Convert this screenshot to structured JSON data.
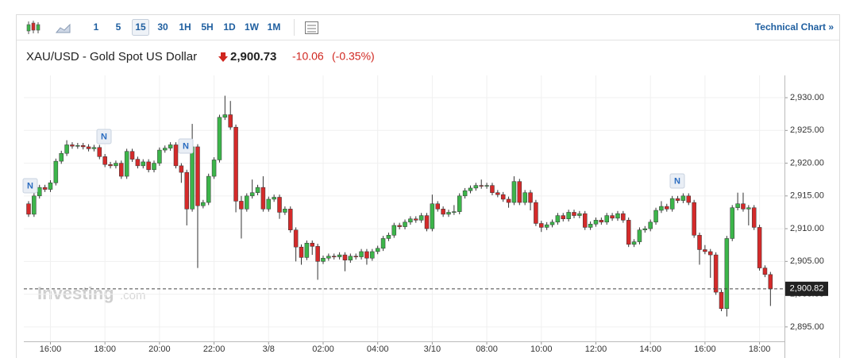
{
  "toolbar": {
    "intervals": [
      "1",
      "5",
      "15",
      "30",
      "1H",
      "5H",
      "1D",
      "1W",
      "1M"
    ],
    "active_interval": 2,
    "link": "Technical Chart »"
  },
  "chart_data": {
    "type": "candlestick",
    "title": "XAU/USD - Gold Spot US Dollar",
    "price": "2,900.73",
    "change": "-10.06",
    "change_pct": "(-0.35%)",
    "watermark": "Investing",
    "watermark_suffix": ".com",
    "news_markers": [
      "N",
      "N",
      "N",
      "N"
    ],
    "categories": [
      null,
      null,
      null,
      null,
      "16:00",
      null,
      null,
      null,
      null,
      null,
      null,
      null,
      null,
      null,
      "18:00",
      null,
      null,
      null,
      null,
      null,
      null,
      null,
      null,
      null,
      "20:00",
      null,
      null,
      null,
      null,
      null,
      null,
      null,
      null,
      null,
      "22:00",
      null,
      null,
      null,
      null,
      null,
      null,
      null,
      null,
      null,
      "3/8",
      null,
      null,
      null,
      null,
      null,
      null,
      null,
      null,
      null,
      "02:00",
      null,
      null,
      null,
      null,
      null,
      null,
      null,
      null,
      null,
      "04:00",
      null,
      null,
      null,
      null,
      null,
      null,
      null,
      null,
      null,
      "3/10",
      null,
      null,
      null,
      null,
      null,
      null,
      null,
      null,
      null,
      "08:00",
      null,
      null,
      null,
      null,
      null,
      null,
      null,
      null,
      null,
      "10:00",
      null,
      null,
      null,
      null,
      null,
      null,
      null,
      null,
      null,
      "12:00",
      null,
      null,
      null,
      null,
      null,
      null,
      null,
      null,
      null,
      "14:00",
      null,
      null,
      null,
      null,
      null,
      null,
      null,
      null,
      null,
      "16:00",
      null,
      null,
      null,
      null,
      null,
      null,
      null,
      null,
      null,
      "18:00",
      null,
      null
    ],
    "open": [
      2913.8,
      2912.2,
      2915.0,
      2916.3,
      2916.0,
      2917.0,
      2920.3,
      2921.5,
      2922.8,
      2922.6,
      2922.7,
      2922.5,
      2922.2,
      2922.4,
      2921.0,
      2919.8,
      2919.6,
      2920.0,
      2918.0,
      2921.8,
      2920.6,
      2919.6,
      2920.2,
      2919.0,
      2920.0,
      2922.0,
      2922.3,
      2922.8,
      2919.6,
      2918.6,
      2913.0,
      2922.5,
      2913.5,
      2914.0,
      2918.0,
      2920.5,
      2927.0,
      2927.4,
      2925.5,
      2914.2,
      2913.0,
      2915.0,
      2915.5,
      2916.3,
      2913.0,
      2914.5,
      2914.8,
      2912.5,
      2913.0,
      2909.8,
      2907.2,
      2905.6,
      2907.8,
      2907.3,
      2905.0,
      2905.5,
      2905.8,
      2905.7,
      2906.0,
      2905.2,
      2905.8,
      2905.7,
      2906.5,
      2905.5,
      2906.5,
      2907.0,
      2908.5,
      2909.0,
      2910.5,
      2910.3,
      2911.0,
      2911.5,
      2911.3,
      2912.0,
      2910.0,
      2913.8,
      2913.0,
      2912.2,
      2912.5,
      2912.6,
      2915.0,
      2915.8,
      2916.2,
      2916.6,
      2916.5,
      2916.6,
      2915.5,
      2915.2,
      2914.5,
      2914.0,
      2917.2,
      2914.0,
      2915.5,
      2914.0,
      2910.8,
      2910.2,
      2910.6,
      2911.0,
      2912.0,
      2911.5,
      2912.5,
      2912.0,
      2912.3,
      2910.2,
      2910.7,
      2911.3,
      2911.0,
      2912.0,
      2911.6,
      2912.3,
      2911.3,
      2907.6,
      2908.0,
      2909.8,
      2910.0,
      2911.0,
      2912.8,
      2913.4,
      2913.0,
      2914.6,
      2914.3,
      2915.0,
      2914.0,
      2909.0,
      2906.8,
      2906.5,
      2906.0,
      2900.3,
      2897.8,
      2908.5,
      2913.2,
      2913.8,
      2913.0,
      2913.2,
      2910.2,
      2904.0,
      2903.0
    ],
    "high": [
      2914.2,
      2916.0,
      2916.7,
      2916.7,
      2917.4,
      2920.7,
      2921.9,
      2923.5,
      2923.2,
      2923.1,
      2923.1,
      2922.9,
      2922.8,
      2922.8,
      2921.4,
      2920.2,
      2920.4,
      2920.4,
      2922.2,
      2922.2,
      2921.0,
      2920.6,
      2920.6,
      2920.4,
      2922.4,
      2922.7,
      2923.2,
      2923.2,
      2920.0,
      2919.0,
      2926.0,
      2922.9,
      2914.4,
      2918.4,
      2920.9,
      2927.4,
      2930.3,
      2929.5,
      2925.9,
      2915.0,
      2915.4,
      2917.5,
      2916.7,
      2918.0,
      2914.9,
      2915.2,
      2915.2,
      2913.4,
      2913.4,
      2910.2,
      2907.6,
      2908.2,
      2908.2,
      2907.7,
      2905.9,
      2906.2,
      2906.2,
      2906.4,
      2906.4,
      2906.2,
      2906.2,
      2906.9,
      2906.9,
      2906.9,
      2907.4,
      2908.9,
      2909.4,
      2910.9,
      2910.9,
      2911.4,
      2911.9,
      2911.9,
      2912.4,
      2912.4,
      2915.2,
      2914.2,
      2913.4,
      2912.9,
      2913.6,
      2915.4,
      2916.2,
      2916.6,
      2917.0,
      2917.5,
      2917.0,
      2917.0,
      2915.9,
      2915.6,
      2914.9,
      2918.0,
      2917.6,
      2915.9,
      2915.9,
      2914.4,
      2911.2,
      2911.0,
      2911.4,
      2912.4,
      2912.4,
      2912.9,
      2912.9,
      2912.7,
      2912.7,
      2911.1,
      2911.7,
      2911.7,
      2912.4,
      2912.4,
      2912.7,
      2912.7,
      2911.7,
      2908.4,
      2910.2,
      2910.4,
      2911.4,
      2913.2,
      2914.2,
      2913.8,
      2915.0,
      2915.0,
      2915.4,
      2915.4,
      2914.4,
      2909.4,
      2907.5,
      2906.9,
      2906.4,
      2900.7,
      2908.9,
      2913.6,
      2915.5,
      2915.5,
      2913.6,
      2913.6,
      2910.6,
      2904.4,
      2903.4
    ],
    "low": [
      2911.8,
      2911.8,
      2914.6,
      2915.6,
      2915.6,
      2916.6,
      2919.9,
      2921.1,
      2922.2,
      2922.2,
      2922.1,
      2921.8,
      2921.8,
      2920.6,
      2919.4,
      2919.2,
      2919.2,
      2917.6,
      2917.6,
      2920.2,
      2919.2,
      2919.2,
      2918.6,
      2918.6,
      2919.6,
      2921.6,
      2921.9,
      2919.2,
      2917.0,
      2910.5,
      2912.6,
      2904.0,
      2913.1,
      2913.6,
      2917.6,
      2920.1,
      2926.6,
      2925.1,
      2912.5,
      2908.5,
      2912.6,
      2914.6,
      2915.1,
      2912.6,
      2912.6,
      2914.1,
      2911.5,
      2912.1,
      2909.4,
      2905.0,
      2904.5,
      2905.2,
      2906.0,
      2902.2,
      2904.6,
      2905.1,
      2905.3,
      2905.3,
      2903.5,
      2904.8,
      2905.3,
      2905.3,
      2904.5,
      2905.1,
      2906.1,
      2906.6,
      2908.1,
      2908.6,
      2909.9,
      2909.9,
      2910.6,
      2910.9,
      2910.9,
      2909.6,
      2909.6,
      2912.6,
      2911.8,
      2911.8,
      2912.1,
      2912.2,
      2914.6,
      2915.4,
      2915.8,
      2916.1,
      2916.1,
      2915.1,
      2914.8,
      2914.1,
      2913.2,
      2913.6,
      2913.6,
      2913.6,
      2912.8,
      2910.4,
      2909.5,
      2909.8,
      2910.2,
      2910.6,
      2911.1,
      2911.1,
      2911.6,
      2911.6,
      2909.8,
      2909.8,
      2910.3,
      2910.6,
      2910.6,
      2911.2,
      2911.2,
      2910.9,
      2907.2,
      2907.2,
      2907.6,
      2909.4,
      2909.6,
      2910.6,
      2912.4,
      2912.6,
      2912.6,
      2913.9,
      2913.9,
      2913.6,
      2908.6,
      2904.5,
      2906.1,
      2902.5,
      2899.9,
      2897.4,
      2896.6,
      2908.1,
      2912.8,
      2912.6,
      2910.5,
      2909.8,
      2903.6,
      2902.6,
      2898.2
    ],
    "close": [
      2912.2,
      2915.0,
      2916.3,
      2916.0,
      2917.0,
      2920.3,
      2921.5,
      2922.8,
      2922.6,
      2922.7,
      2922.5,
      2922.2,
      2922.4,
      2921.0,
      2919.8,
      2919.6,
      2920.0,
      2918.0,
      2921.8,
      2920.6,
      2919.6,
      2920.2,
      2919.0,
      2920.0,
      2922.0,
      2922.3,
      2922.8,
      2919.6,
      2918.6,
      2913.0,
      2922.5,
      2913.5,
      2914.0,
      2918.0,
      2920.5,
      2927.0,
      2927.4,
      2925.5,
      2914.2,
      2913.0,
      2915.0,
      2915.5,
      2916.3,
      2913.0,
      2914.5,
      2914.8,
      2912.5,
      2913.0,
      2909.8,
      2907.2,
      2905.6,
      2907.8,
      2907.3,
      2905.0,
      2905.5,
      2905.8,
      2905.7,
      2906.0,
      2905.2,
      2905.8,
      2905.7,
      2906.5,
      2905.5,
      2906.5,
      2907.0,
      2908.5,
      2909.0,
      2910.5,
      2910.3,
      2911.0,
      2911.5,
      2911.3,
      2912.0,
      2910.0,
      2913.8,
      2913.0,
      2912.2,
      2912.5,
      2912.6,
      2915.0,
      2915.8,
      2916.2,
      2916.6,
      2916.5,
      2916.6,
      2915.5,
      2915.2,
      2914.5,
      2914.0,
      2917.2,
      2914.0,
      2915.5,
      2914.0,
      2910.8,
      2910.2,
      2910.6,
      2911.0,
      2912.0,
      2911.5,
      2912.5,
      2912.0,
      2912.3,
      2910.2,
      2910.7,
      2911.3,
      2911.0,
      2912.0,
      2911.6,
      2912.3,
      2911.3,
      2907.6,
      2908.0,
      2909.8,
      2910.0,
      2911.0,
      2912.8,
      2913.4,
      2913.0,
      2914.6,
      2914.3,
      2915.0,
      2914.0,
      2909.0,
      2906.8,
      2906.5,
      2906.0,
      2900.3,
      2897.8,
      2908.5,
      2913.2,
      2913.8,
      2913.0,
      2913.2,
      2910.2,
      2904.0,
      2903.0,
      2900.8
    ],
    "ylim": [
      2892.8,
      2933.4
    ],
    "yticks": [
      {
        "value": 2895,
        "label": "2,895.00"
      },
      {
        "value": 2900,
        "label": "2,900.00"
      },
      {
        "value": 2905,
        "label": "2,905.00"
      },
      {
        "value": 2910,
        "label": "2,910.00"
      },
      {
        "value": 2915,
        "label": "2,915.00"
      },
      {
        "value": 2920,
        "label": "2,920.00"
      },
      {
        "value": 2925,
        "label": "2,925.00"
      },
      {
        "value": 2930,
        "label": "2,930.00"
      }
    ],
    "grid": true,
    "up_color": "#3cb54a",
    "down_color": "#d42a2a",
    "last_price": {
      "value": 2900.82,
      "label": "2,900.82"
    }
  }
}
